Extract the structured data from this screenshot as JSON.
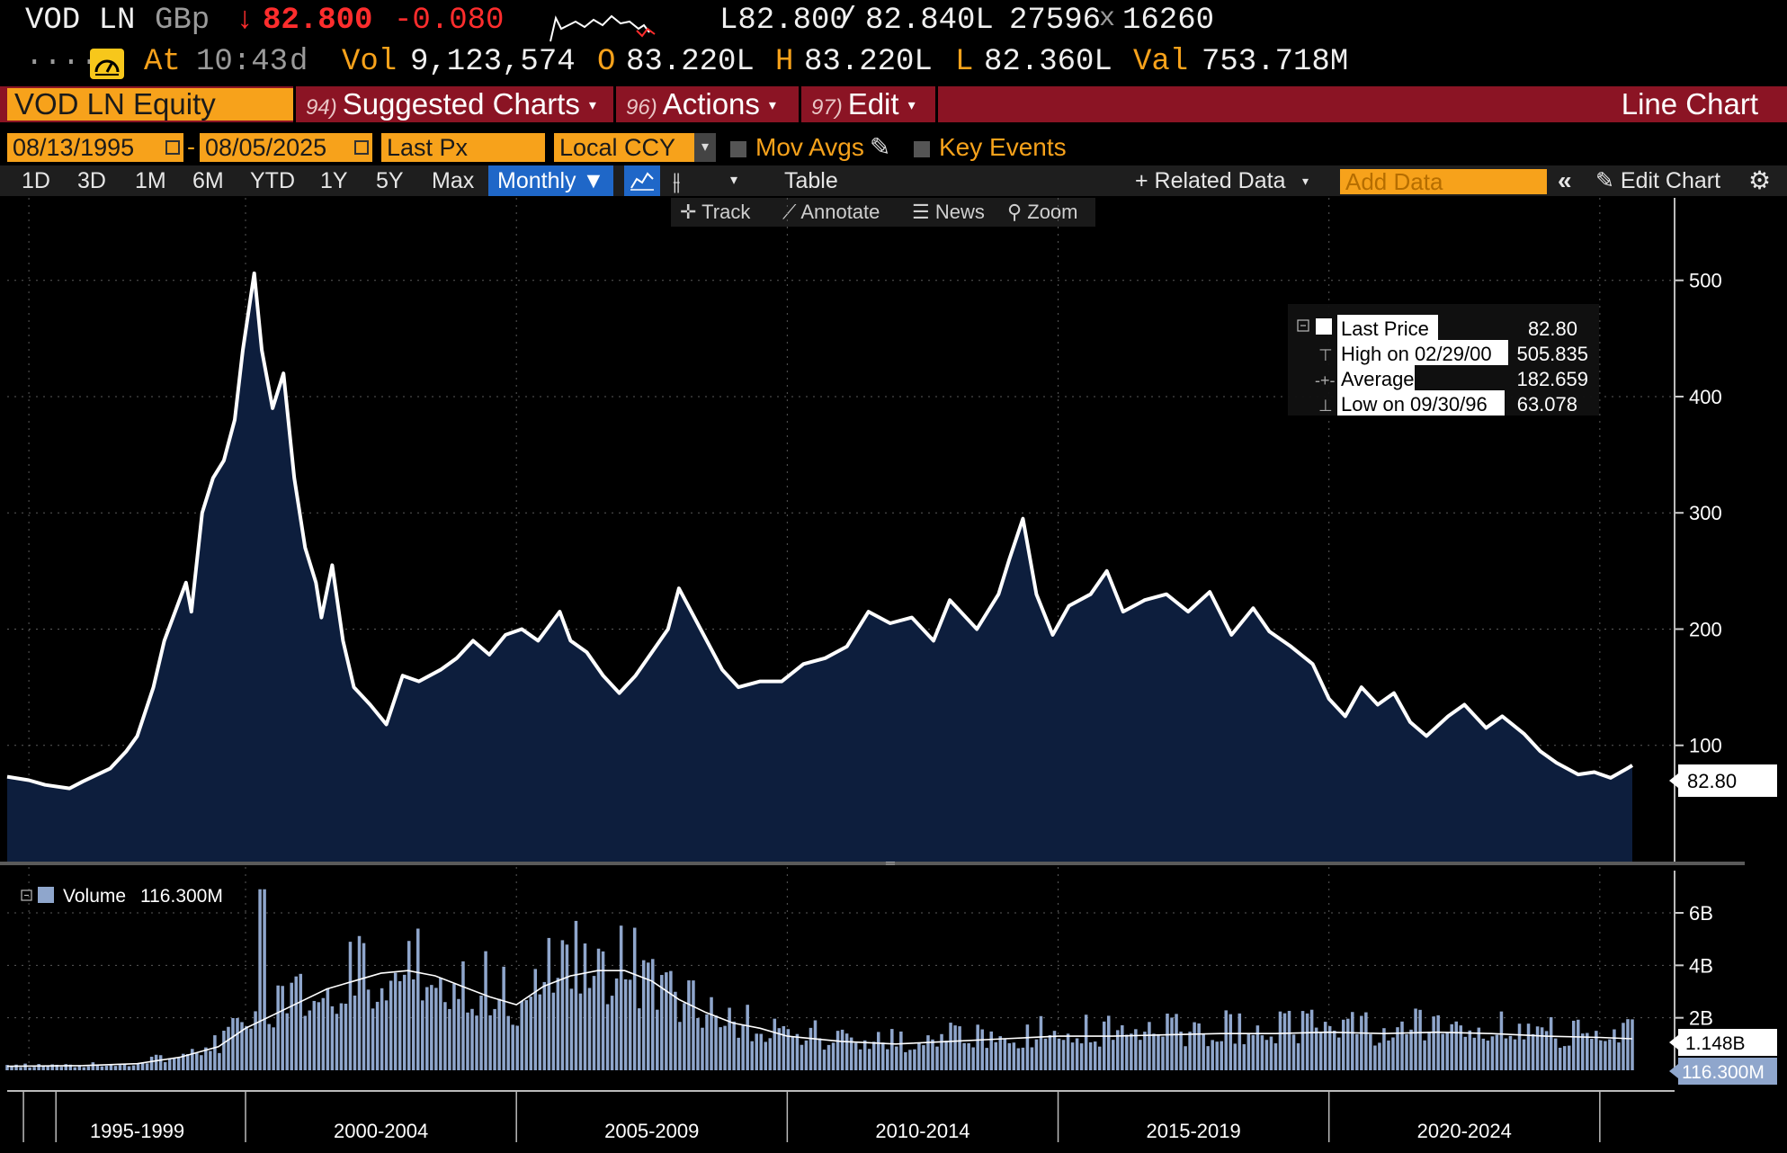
{
  "quote": {
    "ticker": "VOD LN",
    "currency": "GBp",
    "arrow": "↓",
    "last": "82.800",
    "change": "-0.080",
    "bid": "L82.800",
    "slash": "/",
    "ask": "82.840L",
    "bid_size": "27596",
    "x": "x",
    "ask_size": "16260",
    "dots": ".....",
    "at_label": "At",
    "time": "10:43",
    "time_suffix": "d",
    "vol_label": "Vol",
    "vol": "9,123,574",
    "open_label": "O",
    "open": "83.220L",
    "high_label": "H",
    "high": "83.220L",
    "low_label": "L",
    "low": "82.360L",
    "val_label": "Val",
    "val": "753.718M"
  },
  "command_bar": {
    "security": "VOD LN Equity",
    "menus": [
      {
        "num": "94)",
        "label": "Suggested Charts"
      },
      {
        "num": "96)",
        "label": "Actions"
      },
      {
        "num": "97)",
        "label": "Edit"
      }
    ],
    "view_title": "Line Chart"
  },
  "options": {
    "start_date": "08/13/1995",
    "dash": "-",
    "end_date": "08/05/2025",
    "field": "Last Px",
    "currency": "Local CCY",
    "mov_avgs": "Mov Avgs",
    "key_events": "Key Events"
  },
  "period_bar": {
    "periods": [
      "1D",
      "3D",
      "1M",
      "6M",
      "YTD",
      "1Y",
      "5Y",
      "Max"
    ],
    "frequency": "Monthly ▼",
    "table": "Table",
    "related": "+ Related Data",
    "add_data_placeholder": "Add Data",
    "edit_chart": "Edit Chart"
  },
  "tools": [
    "Track",
    "Annotate",
    "News",
    "Zoom"
  ],
  "legend": {
    "rows": [
      {
        "label": "Last Price",
        "value": "82.80"
      },
      {
        "label": "High on 02/29/00",
        "value": "505.835"
      },
      {
        "label": "Average",
        "value": "182.659"
      },
      {
        "label": "Low on 09/30/96",
        "value": "63.078"
      }
    ]
  },
  "volume_legend": {
    "label": "Volume",
    "value": "116.300M"
  },
  "price_tag": "82.80",
  "volume_tags": [
    "1.148B",
    "116.300M"
  ],
  "colors": {
    "accent": "#f7a21b",
    "cmd_bar": "#8b1424",
    "area": "#0d1e3d",
    "line": "#ffffff",
    "volume": "#8fa6cc"
  },
  "chart_data": {
    "type": "area",
    "price_axis": {
      "ticks": [
        "100",
        "200",
        "300",
        "400",
        "500"
      ],
      "range": [
        0,
        540
      ]
    },
    "volume_axis": {
      "ticks": [
        "2B",
        "4B",
        "6B"
      ]
    },
    "x_labels": [
      "1995-1999",
      "2000-2004",
      "2005-2009",
      "2010-2014",
      "2015-2019",
      "2020-2024"
    ],
    "x_range": [
      1995.6,
      2025.6
    ],
    "price": [
      [
        1995.6,
        73
      ],
      [
        1996.0,
        70
      ],
      [
        1996.3,
        66
      ],
      [
        1996.75,
        63
      ],
      [
        1997.0,
        69
      ],
      [
        1997.5,
        80
      ],
      [
        1997.8,
        95
      ],
      [
        1998.0,
        108
      ],
      [
        1998.3,
        150
      ],
      [
        1998.5,
        190
      ],
      [
        1998.9,
        240
      ],
      [
        1999.0,
        215
      ],
      [
        1999.2,
        300
      ],
      [
        1999.4,
        330
      ],
      [
        1999.6,
        345
      ],
      [
        1999.8,
        380
      ],
      [
        1999.95,
        440
      ],
      [
        2000.16,
        506
      ],
      [
        2000.3,
        440
      ],
      [
        2000.5,
        390
      ],
      [
        2000.7,
        420
      ],
      [
        2000.9,
        330
      ],
      [
        2001.1,
        270
      ],
      [
        2001.3,
        240
      ],
      [
        2001.4,
        210
      ],
      [
        2001.6,
        255
      ],
      [
        2001.8,
        190
      ],
      [
        2002.0,
        150
      ],
      [
        2002.3,
        135
      ],
      [
        2002.6,
        118
      ],
      [
        2002.9,
        160
      ],
      [
        2003.2,
        155
      ],
      [
        2003.6,
        165
      ],
      [
        2003.9,
        175
      ],
      [
        2004.2,
        190
      ],
      [
        2004.5,
        178
      ],
      [
        2004.8,
        195
      ],
      [
        2005.1,
        200
      ],
      [
        2005.4,
        190
      ],
      [
        2005.8,
        215
      ],
      [
        2006.0,
        190
      ],
      [
        2006.3,
        180
      ],
      [
        2006.6,
        160
      ],
      [
        2006.9,
        145
      ],
      [
        2007.2,
        160
      ],
      [
        2007.5,
        180
      ],
      [
        2007.8,
        200
      ],
      [
        2008.0,
        235
      ],
      [
        2008.4,
        200
      ],
      [
        2008.8,
        165
      ],
      [
        2009.1,
        150
      ],
      [
        2009.5,
        155
      ],
      [
        2009.9,
        155
      ],
      [
        2010.3,
        170
      ],
      [
        2010.7,
        175
      ],
      [
        2011.1,
        185
      ],
      [
        2011.5,
        215
      ],
      [
        2011.9,
        205
      ],
      [
        2012.3,
        210
      ],
      [
        2012.7,
        190
      ],
      [
        2013.0,
        225
      ],
      [
        2013.5,
        200
      ],
      [
        2013.9,
        230
      ],
      [
        2014.1,
        260
      ],
      [
        2014.35,
        295
      ],
      [
        2014.6,
        230
      ],
      [
        2014.9,
        195
      ],
      [
        2015.2,
        220
      ],
      [
        2015.6,
        230
      ],
      [
        2015.9,
        250
      ],
      [
        2016.2,
        215
      ],
      [
        2016.6,
        225
      ],
      [
        2017.0,
        230
      ],
      [
        2017.4,
        215
      ],
      [
        2017.8,
        232
      ],
      [
        2018.2,
        195
      ],
      [
        2018.6,
        218
      ],
      [
        2018.9,
        198
      ],
      [
        2019.3,
        185
      ],
      [
        2019.7,
        170
      ],
      [
        2020.0,
        140
      ],
      [
        2020.3,
        125
      ],
      [
        2020.6,
        150
      ],
      [
        2020.9,
        135
      ],
      [
        2021.2,
        145
      ],
      [
        2021.5,
        120
      ],
      [
        2021.8,
        108
      ],
      [
        2022.2,
        125
      ],
      [
        2022.5,
        135
      ],
      [
        2022.9,
        115
      ],
      [
        2023.2,
        125
      ],
      [
        2023.6,
        110
      ],
      [
        2023.9,
        95
      ],
      [
        2024.2,
        85
      ],
      [
        2024.6,
        75
      ],
      [
        2024.9,
        77
      ],
      [
        2025.2,
        72
      ],
      [
        2025.5,
        80
      ],
      [
        2025.6,
        82.8
      ]
    ],
    "volume_ma": [
      [
        1995.6,
        0.15
      ],
      [
        1997.0,
        0.18
      ],
      [
        1998.0,
        0.25
      ],
      [
        1998.8,
        0.5
      ],
      [
        1999.5,
        0.9
      ],
      [
        2000.0,
        1.6
      ],
      [
        2000.5,
        2.1
      ],
      [
        2001.0,
        2.6
      ],
      [
        2001.5,
        3.1
      ],
      [
        2002.0,
        3.4
      ],
      [
        2002.5,
        3.7
      ],
      [
        2003.0,
        3.8
      ],
      [
        2003.5,
        3.6
      ],
      [
        2004.0,
        3.2
      ],
      [
        2004.5,
        2.8
      ],
      [
        2005.0,
        2.5
      ],
      [
        2005.5,
        3.2
      ],
      [
        2006.0,
        3.6
      ],
      [
        2006.5,
        3.8
      ],
      [
        2007.0,
        3.8
      ],
      [
        2007.5,
        3.4
      ],
      [
        2008.0,
        2.7
      ],
      [
        2008.5,
        2.2
      ],
      [
        2009.0,
        1.8
      ],
      [
        2009.5,
        1.6
      ],
      [
        2010.0,
        1.3
      ],
      [
        2011.0,
        1.1
      ],
      [
        2012.0,
        1.0
      ],
      [
        2013.0,
        1.1
      ],
      [
        2014.0,
        1.2
      ],
      [
        2015.0,
        1.3
      ],
      [
        2016.0,
        1.3
      ],
      [
        2017.0,
        1.35
      ],
      [
        2018.0,
        1.4
      ],
      [
        2019.0,
        1.4
      ],
      [
        2020.0,
        1.45
      ],
      [
        2021.0,
        1.4
      ],
      [
        2022.0,
        1.45
      ],
      [
        2023.0,
        1.4
      ],
      [
        2024.0,
        1.3
      ],
      [
        2025.0,
        1.25
      ],
      [
        2025.6,
        1.2
      ]
    ]
  }
}
